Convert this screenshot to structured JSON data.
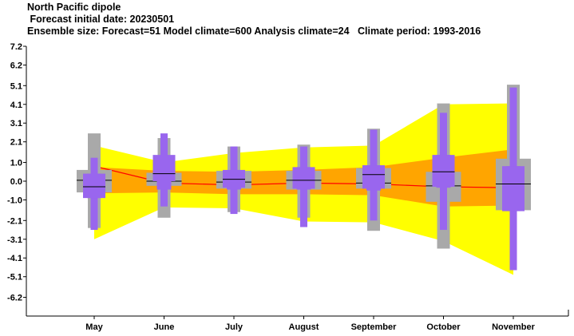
{
  "header": {
    "title": "North Pacific dipole",
    "subtitle": " Forecast initial date: 20230501",
    "ensemble_line": "Ensemble size: Forecast=51 Model climate=600 Analysis climate=24   Climate period: 1993-2016"
  },
  "colors": {
    "yellow_band": "#ffff00",
    "orange_band": "#ffa500",
    "analysis_whisker": "#a9a9a9",
    "forecast_whisker": "#9966ee",
    "median_line": "#ff0000"
  },
  "chart_data": {
    "type": "box",
    "title": "North Pacific dipole",
    "ylim": [
      -7.2,
      7.2
    ],
    "y_ticks": [
      "7.2",
      "6.2",
      "5.1",
      "4.1",
      "3.1",
      "2.1",
      "1.0",
      "0.0",
      "-1.0",
      "-2.1",
      "-3.1",
      "-4.1",
      "-5.1",
      "-6.2"
    ],
    "y_tick_values": [
      7.2,
      6.2,
      5.1,
      4.1,
      3.1,
      2.1,
      1.0,
      0.0,
      -1.0,
      -2.1,
      -3.1,
      -4.1,
      -5.1,
      -6.2
    ],
    "categories": [
      "May",
      "June",
      "July",
      "August",
      "September",
      "October",
      "November"
    ],
    "model_climate_band": {
      "p5": [
        -3.1,
        -1.4,
        -1.45,
        -2.15,
        -2.2,
        -3.2,
        -5.0
      ],
      "p25": [
        -0.65,
        -0.6,
        -0.7,
        -0.7,
        -0.75,
        -1.35,
        -1.3
      ],
      "p75": [
        0.75,
        0.55,
        0.5,
        0.6,
        0.75,
        1.25,
        1.7
      ],
      "p95": [
        1.9,
        1.0,
        1.5,
        1.8,
        1.9,
        4.1,
        4.15
      ]
    },
    "model_climate_median": [
      0.8,
      -0.1,
      -0.2,
      -0.1,
      -0.15,
      -0.3,
      -0.35
    ],
    "analysis_climate": {
      "min": [
        -2.5,
        -1.95,
        -1.65,
        -1.95,
        -2.65,
        -3.6,
        -1.55
      ],
      "q25": [
        -0.6,
        -0.25,
        -0.4,
        -0.45,
        -0.4,
        -1.1,
        -1.55
      ],
      "median": [
        0.05,
        0.0,
        -0.05,
        0.05,
        -0.1,
        -0.25,
        -0.15
      ],
      "q75": [
        0.6,
        0.45,
        0.55,
        0.55,
        0.7,
        0.5,
        1.2
      ],
      "max": [
        2.55,
        2.3,
        1.85,
        1.95,
        2.8,
        4.15,
        5.15
      ]
    },
    "forecast": {
      "p5": [
        -2.6,
        -1.35,
        -1.75,
        -2.45,
        -2.1,
        -2.6,
        -4.75
      ],
      "p25": [
        -0.9,
        0.0,
        -0.35,
        -0.4,
        -0.4,
        -0.3,
        -1.6
      ],
      "p33": [
        -0.9,
        -0.45,
        -0.45,
        -0.45,
        -0.5,
        -0.35,
        -1.6
      ],
      "median": [
        -0.3,
        0.4,
        0.1,
        0.05,
        0.35,
        0.5,
        -0.15
      ],
      "p66": [
        0.4,
        1.35,
        0.55,
        0.75,
        0.85,
        1.4,
        0.8
      ],
      "p75": [
        0.4,
        1.4,
        0.6,
        0.75,
        0.85,
        1.4,
        0.8
      ],
      "p95": [
        1.25,
        2.55,
        1.85,
        1.85,
        2.75,
        3.65,
        5.0
      ]
    },
    "xlabel": "",
    "ylabel": "",
    "grid": false,
    "legend": "none"
  }
}
